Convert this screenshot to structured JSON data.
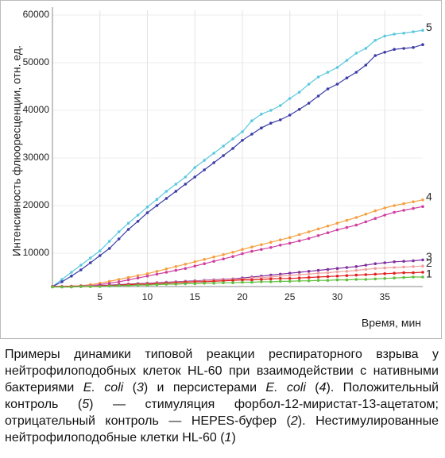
{
  "chart_data": {
    "type": "line",
    "ylabel": "Интенсивность флюоресценции, отн. ед.",
    "xlabel": "Время, мин",
    "xlim": [
      0,
      39
    ],
    "xticks": [
      5,
      10,
      15,
      20,
      25,
      30,
      35
    ],
    "ylim": [
      3000,
      61000
    ],
    "yticks": [
      10000,
      20000,
      30000,
      40000,
      50000,
      60000
    ],
    "grid": true,
    "x": [
      0,
      1,
      2,
      3,
      4,
      5,
      6,
      7,
      8,
      9,
      10,
      11,
      12,
      13,
      14,
      15,
      16,
      17,
      18,
      19,
      20,
      21,
      22,
      23,
      24,
      25,
      26,
      27,
      28,
      29,
      30,
      31,
      32,
      33,
      34,
      35,
      36,
      37,
      38,
      39
    ],
    "series": [
      {
        "name": "5",
        "color": "#5bc8de",
        "values": [
          3000,
          4500,
          6000,
          7500,
          9000,
          10500,
          12500,
          14500,
          16300,
          18000,
          19700,
          21300,
          23000,
          24500,
          26000,
          28000,
          29500,
          31000,
          32500,
          34000,
          35500,
          37800,
          39200,
          40000,
          41000,
          42500,
          43800,
          45500,
          47000,
          48000,
          49000,
          50500,
          52000,
          53000,
          54700,
          55600,
          56000,
          56200,
          56500,
          56800
        ]
      },
      {
        "color": "#3b3ba8",
        "values": [
          3000,
          4000,
          5200,
          6500,
          8000,
          9500,
          11000,
          13000,
          15000,
          16700,
          18500,
          20000,
          21500,
          23000,
          24500,
          26000,
          27500,
          29000,
          30500,
          32000,
          33700,
          35000,
          36300,
          37300,
          38000,
          39000,
          40200,
          41500,
          43000,
          44500,
          45500,
          46800,
          48000,
          49500,
          51500,
          52200,
          52800,
          53000,
          53200,
          53800
        ]
      },
      {
        "name": "4",
        "color": "#f5a040",
        "values": [
          3000,
          3000,
          3100,
          3200,
          3400,
          3700,
          4100,
          4500,
          4900,
          5300,
          5700,
          6200,
          6700,
          7200,
          7700,
          8200,
          8700,
          9200,
          9700,
          10200,
          10800,
          11300,
          11800,
          12300,
          12800,
          13300,
          13900,
          14500,
          15100,
          15700,
          16300,
          16900,
          17500,
          18200,
          18900,
          19500,
          20000,
          20400,
          20800,
          21200
        ]
      },
      {
        "color": "#d040a0",
        "values": [
          3000,
          3000,
          3000,
          3100,
          3200,
          3400,
          3700,
          4000,
          4400,
          4800,
          5200,
          5600,
          6000,
          6400,
          6800,
          7300,
          7800,
          8300,
          8800,
          9300,
          9900,
          10400,
          10800,
          11200,
          11700,
          12100,
          12600,
          13100,
          13700,
          14300,
          14900,
          15400,
          15900,
          16600,
          17300,
          18000,
          18600,
          19000,
          19400,
          19800
        ]
      },
      {
        "name": "3",
        "color": "#8030a0",
        "values": [
          3000,
          3000,
          3000,
          3100,
          3100,
          3200,
          3300,
          3400,
          3500,
          3600,
          3700,
          3800,
          3900,
          4000,
          4100,
          4200,
          4300,
          4400,
          4500,
          4600,
          4800,
          5000,
          5200,
          5400,
          5600,
          5800,
          6000,
          6200,
          6400,
          6600,
          6800,
          7000,
          7200,
          7500,
          7800,
          8000,
          8200,
          8300,
          8400,
          8600
        ]
      },
      {
        "name": "2",
        "color": "#f0a0a0",
        "values": [
          3000,
          3000,
          3000,
          3000,
          3100,
          3100,
          3200,
          3300,
          3400,
          3500,
          3600,
          3700,
          3800,
          3900,
          4000,
          4100,
          4200,
          4300,
          4400,
          4500,
          4600,
          4800,
          4900,
          5000,
          5200,
          5300,
          5500,
          5600,
          5800,
          5900,
          6100,
          6200,
          6400,
          6600,
          6800,
          6900,
          7000,
          7100,
          7200,
          7300
        ]
      },
      {
        "color": "#e02020",
        "values": [
          3000,
          3000,
          3000,
          3000,
          3000,
          3100,
          3200,
          3300,
          3400,
          3500,
          3500,
          3600,
          3700,
          3800,
          3900,
          4000,
          4000,
          4100,
          4200,
          4300,
          4400,
          4400,
          4500,
          4600,
          4700,
          4700,
          4800,
          4900,
          5000,
          5100,
          5200,
          5300,
          5400,
          5500,
          5600,
          5700,
          5800,
          5900,
          5900,
          6000
        ]
      },
      {
        "name": "1",
        "color": "#60c040",
        "values": [
          2900,
          2900,
          2900,
          3000,
          3000,
          3000,
          3100,
          3200,
          3200,
          3300,
          3300,
          3400,
          3500,
          3500,
          3600,
          3600,
          3700,
          3700,
          3800,
          3800,
          3900,
          3900,
          4000,
          4000,
          4100,
          4100,
          4200,
          4200,
          4300,
          4300,
          4400,
          4400,
          4500,
          4500,
          4600,
          4700,
          4800,
          4900,
          5000,
          5000
        ]
      }
    ]
  },
  "caption": [
    {
      "text": "Примеры динамики типовой реакции респираторного взрыва у нейтрофилоподобных клеток HL-60 при взаимодействии с нативными бактериями "
    },
    {
      "text": "E. coli",
      "italic": true
    },
    {
      "text": " ("
    },
    {
      "text": "3",
      "italic": true
    },
    {
      "text": ") и персистерами "
    },
    {
      "text": "E. coli",
      "italic": true
    },
    {
      "text": " ("
    },
    {
      "text": "4",
      "italic": true
    },
    {
      "text": "). Положительный контроль ("
    },
    {
      "text": "5",
      "italic": true
    },
    {
      "text": ") — стимуляция форбол-12-миристат-13-ацетатом; отрицательный контроль — HEPES-буфер ("
    },
    {
      "text": "2",
      "italic": true
    },
    {
      "text": "). Нестимулированные нейтрофилоподобные клетки HL-60 ("
    },
    {
      "text": "1",
      "italic": true
    },
    {
      "text": ")"
    }
  ]
}
